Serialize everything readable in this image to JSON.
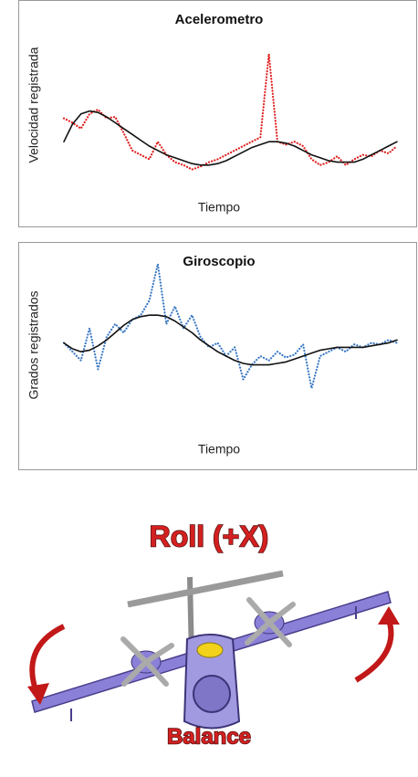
{
  "chart_data": [
    {
      "type": "line",
      "title": "Acelerometro",
      "x_label": "Tiempo",
      "y_label": "Velocidad registrada",
      "ylim": [
        0,
        100
      ],
      "series": [
        {
          "color": "#e02020",
          "line_style": "dotted",
          "values": [
            44,
            41,
            37,
            47,
            50,
            44,
            45,
            34,
            22,
            19,
            16,
            28,
            19,
            14,
            12,
            9,
            11,
            14,
            16,
            19,
            22,
            25,
            28,
            31,
            88,
            28,
            26,
            28,
            25,
            16,
            12,
            14,
            18,
            12,
            16,
            19,
            18,
            22,
            20,
            25
          ]
        },
        {
          "color": "#111111",
          "line_style": "solid",
          "values": [
            28,
            40,
            47,
            49,
            48,
            45,
            41,
            37,
            33,
            29,
            25,
            22,
            19,
            17,
            15,
            13,
            12,
            12,
            13,
            15,
            18,
            21,
            24,
            26,
            28,
            28,
            27,
            25,
            22,
            19,
            17,
            15,
            14,
            14,
            14,
            16,
            19,
            22,
            25,
            28
          ]
        }
      ]
    },
    {
      "type": "line",
      "title": "Giroscopio",
      "x_label": "Tiempo",
      "y_label": "Grados registrados",
      "ylim": [
        0,
        100
      ],
      "series": [
        {
          "color": "#3a78c4",
          "line_style": "dotted",
          "values": [
            34,
            28,
            22,
            44,
            16,
            38,
            47,
            41,
            50,
            53,
            63,
            88,
            47,
            59,
            44,
            53,
            38,
            31,
            34,
            25,
            31,
            9,
            19,
            25,
            22,
            28,
            24,
            26,
            33,
            3,
            25,
            28,
            31,
            28,
            33,
            31,
            34,
            33,
            36,
            34
          ]
        },
        {
          "color": "#111111",
          "line_style": "solid",
          "values": [
            34,
            30,
            28,
            29,
            32,
            36,
            41,
            46,
            50,
            52,
            53,
            53,
            52,
            49,
            45,
            41,
            36,
            32,
            28,
            25,
            22,
            20,
            19,
            19,
            19,
            20,
            21,
            23,
            25,
            27,
            29,
            30,
            31,
            31,
            31,
            31,
            32,
            33,
            34,
            36
          ]
        }
      ]
    }
  ],
  "illustration": {
    "title": "Roll (+X)",
    "caption": "Balance"
  }
}
